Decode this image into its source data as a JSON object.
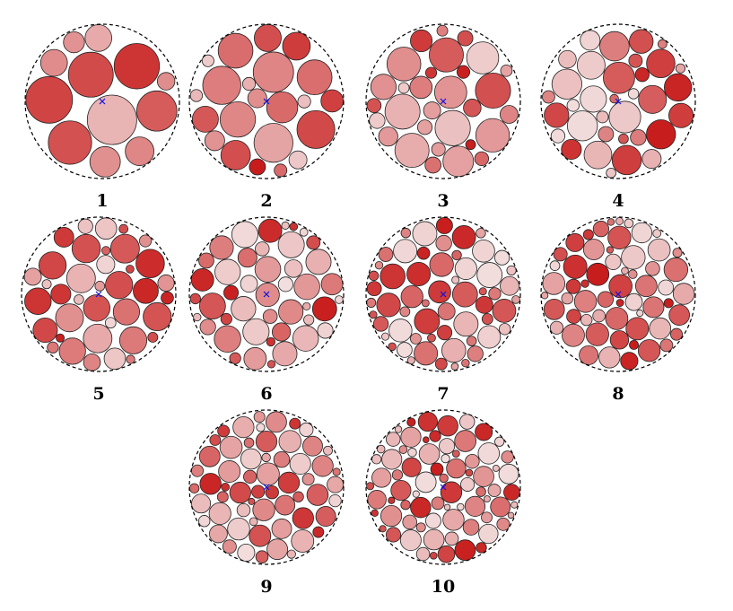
{
  "panels": [
    {
      "label": "1"
    },
    {
      "label": "2"
    },
    {
      "label": "3"
    },
    {
      "label": "4"
    },
    {
      "label": "5"
    },
    {
      "label": "6"
    },
    {
      "label": "7"
    },
    {
      "label": "8"
    },
    {
      "label": "9"
    },
    {
      "label": "10"
    }
  ]
}
